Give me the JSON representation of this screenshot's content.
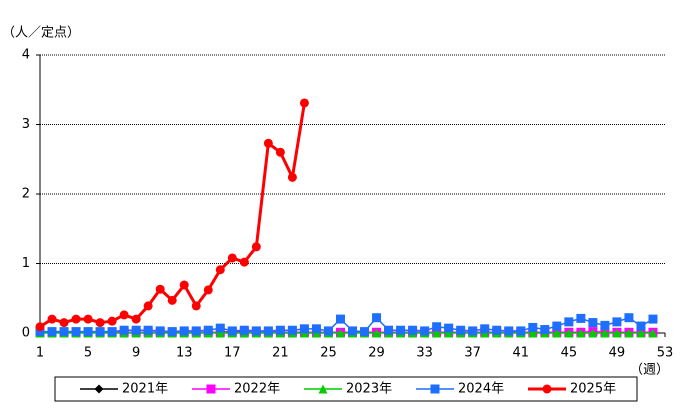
{
  "chart_data": {
    "type": "line",
    "y_label": "（人／定点）",
    "x_label": "（週）",
    "x": [
      1,
      2,
      3,
      4,
      5,
      6,
      7,
      8,
      9,
      10,
      11,
      12,
      13,
      14,
      15,
      16,
      17,
      18,
      19,
      20,
      21,
      22,
      23,
      24,
      25,
      26,
      27,
      28,
      29,
      30,
      31,
      32,
      33,
      34,
      35,
      36,
      37,
      38,
      39,
      40,
      41,
      42,
      43,
      44,
      45,
      46,
      47,
      48,
      49,
      50,
      51,
      52,
      53
    ],
    "xlim": [
      1,
      53
    ],
    "xticks": [
      1,
      5,
      9,
      13,
      17,
      21,
      25,
      29,
      33,
      37,
      41,
      45,
      49,
      53
    ],
    "ylim": [
      0,
      4
    ],
    "yticks": [
      0,
      1,
      2,
      3,
      4
    ],
    "grid": true,
    "series": [
      {
        "name": "2021年",
        "color": "#000000",
        "marker": "diamond",
        "values": [
          0.01,
          0.01,
          0.01,
          0.01,
          0.01,
          0.01,
          0.01,
          0.01,
          0.01,
          0.01,
          0.01,
          0.01,
          0.01,
          0.01,
          0.01,
          0.01,
          0.02,
          0.04,
          0.03,
          0.02,
          0.01,
          0.01,
          0.01,
          0.01,
          0.01,
          0.01,
          0.01,
          0.01,
          0.01,
          0.01,
          0.01,
          0.01,
          0.01,
          0.01,
          0.01,
          0.01,
          0.01,
          0.01,
          0.01,
          0.01,
          0.01,
          0.01,
          0.01,
          0.01,
          0.01,
          0.01,
          0.01,
          0.01,
          0.01,
          0.01,
          0.01,
          0.01,
          null
        ]
      },
      {
        "name": "2022年",
        "color": "#ff00ff",
        "marker": "square",
        "values": [
          0.01,
          0.01,
          0.01,
          0.01,
          0.01,
          0.01,
          0.01,
          0.01,
          0.01,
          0.01,
          0.01,
          0.01,
          0.01,
          0.01,
          0.01,
          0.01,
          0.01,
          0.01,
          0.01,
          0.01,
          0.01,
          0.01,
          0.01,
          0.01,
          0.01,
          0.01,
          0.01,
          0.01,
          0.01,
          0.01,
          0.01,
          0.01,
          0.01,
          0.01,
          0.01,
          0.01,
          0.01,
          0.01,
          0.01,
          0.01,
          0.01,
          0.01,
          0.01,
          0.01,
          0.01,
          0.01,
          0.02,
          0.01,
          0.01,
          0.01,
          0.01,
          0.01,
          null
        ]
      },
      {
        "name": "2023年",
        "color": "#00cc00",
        "marker": "triangle",
        "values": [
          0,
          0,
          0,
          0,
          0,
          0,
          0,
          0,
          0,
          0,
          0,
          0,
          0,
          0,
          0,
          0,
          0,
          0,
          0,
          0,
          0,
          0,
          0,
          0,
          0,
          0,
          0,
          0,
          0,
          0,
          0,
          0,
          0,
          0,
          0,
          0,
          0,
          0,
          0,
          0,
          0,
          0,
          0,
          0,
          0,
          0,
          0,
          0,
          0,
          0,
          0,
          0,
          null
        ]
      },
      {
        "name": "2024年",
        "color": "#1f6fff",
        "marker": "square",
        "values": [
          0.02,
          0.02,
          0.02,
          0.02,
          0.02,
          0.02,
          0.02,
          0.04,
          0.04,
          0.04,
          0.03,
          0.02,
          0.03,
          0.03,
          0.04,
          0.07,
          0.03,
          0.04,
          0.03,
          0.03,
          0.04,
          0.04,
          0.06,
          0.06,
          0.03,
          0.2,
          0.03,
          0.02,
          0.22,
          0.04,
          0.04,
          0.04,
          0.03,
          0.09,
          0.07,
          0.04,
          0.03,
          0.06,
          0.04,
          0.03,
          0.03,
          0.08,
          0.05,
          0.1,
          0.16,
          0.21,
          0.15,
          0.11,
          0.16,
          0.22,
          0.1,
          0.2,
          null
        ]
      },
      {
        "name": "2025年",
        "color": "#ff0000",
        "marker": "circle",
        "values": [
          0.09,
          0.2,
          0.15,
          0.2,
          0.2,
          0.15,
          0.17,
          0.26,
          0.2,
          0.39,
          0.63,
          0.47,
          0.69,
          0.39,
          0.62,
          0.91,
          1.08,
          1.02,
          1.24,
          2.73,
          2.6,
          2.24,
          3.31,
          null,
          null,
          null,
          null,
          null,
          null,
          null,
          null,
          null,
          null,
          null,
          null,
          null,
          null,
          null,
          null,
          null,
          null,
          null,
          null,
          null,
          null,
          null,
          null,
          null,
          null,
          null,
          null,
          null,
          null
        ]
      }
    ]
  }
}
